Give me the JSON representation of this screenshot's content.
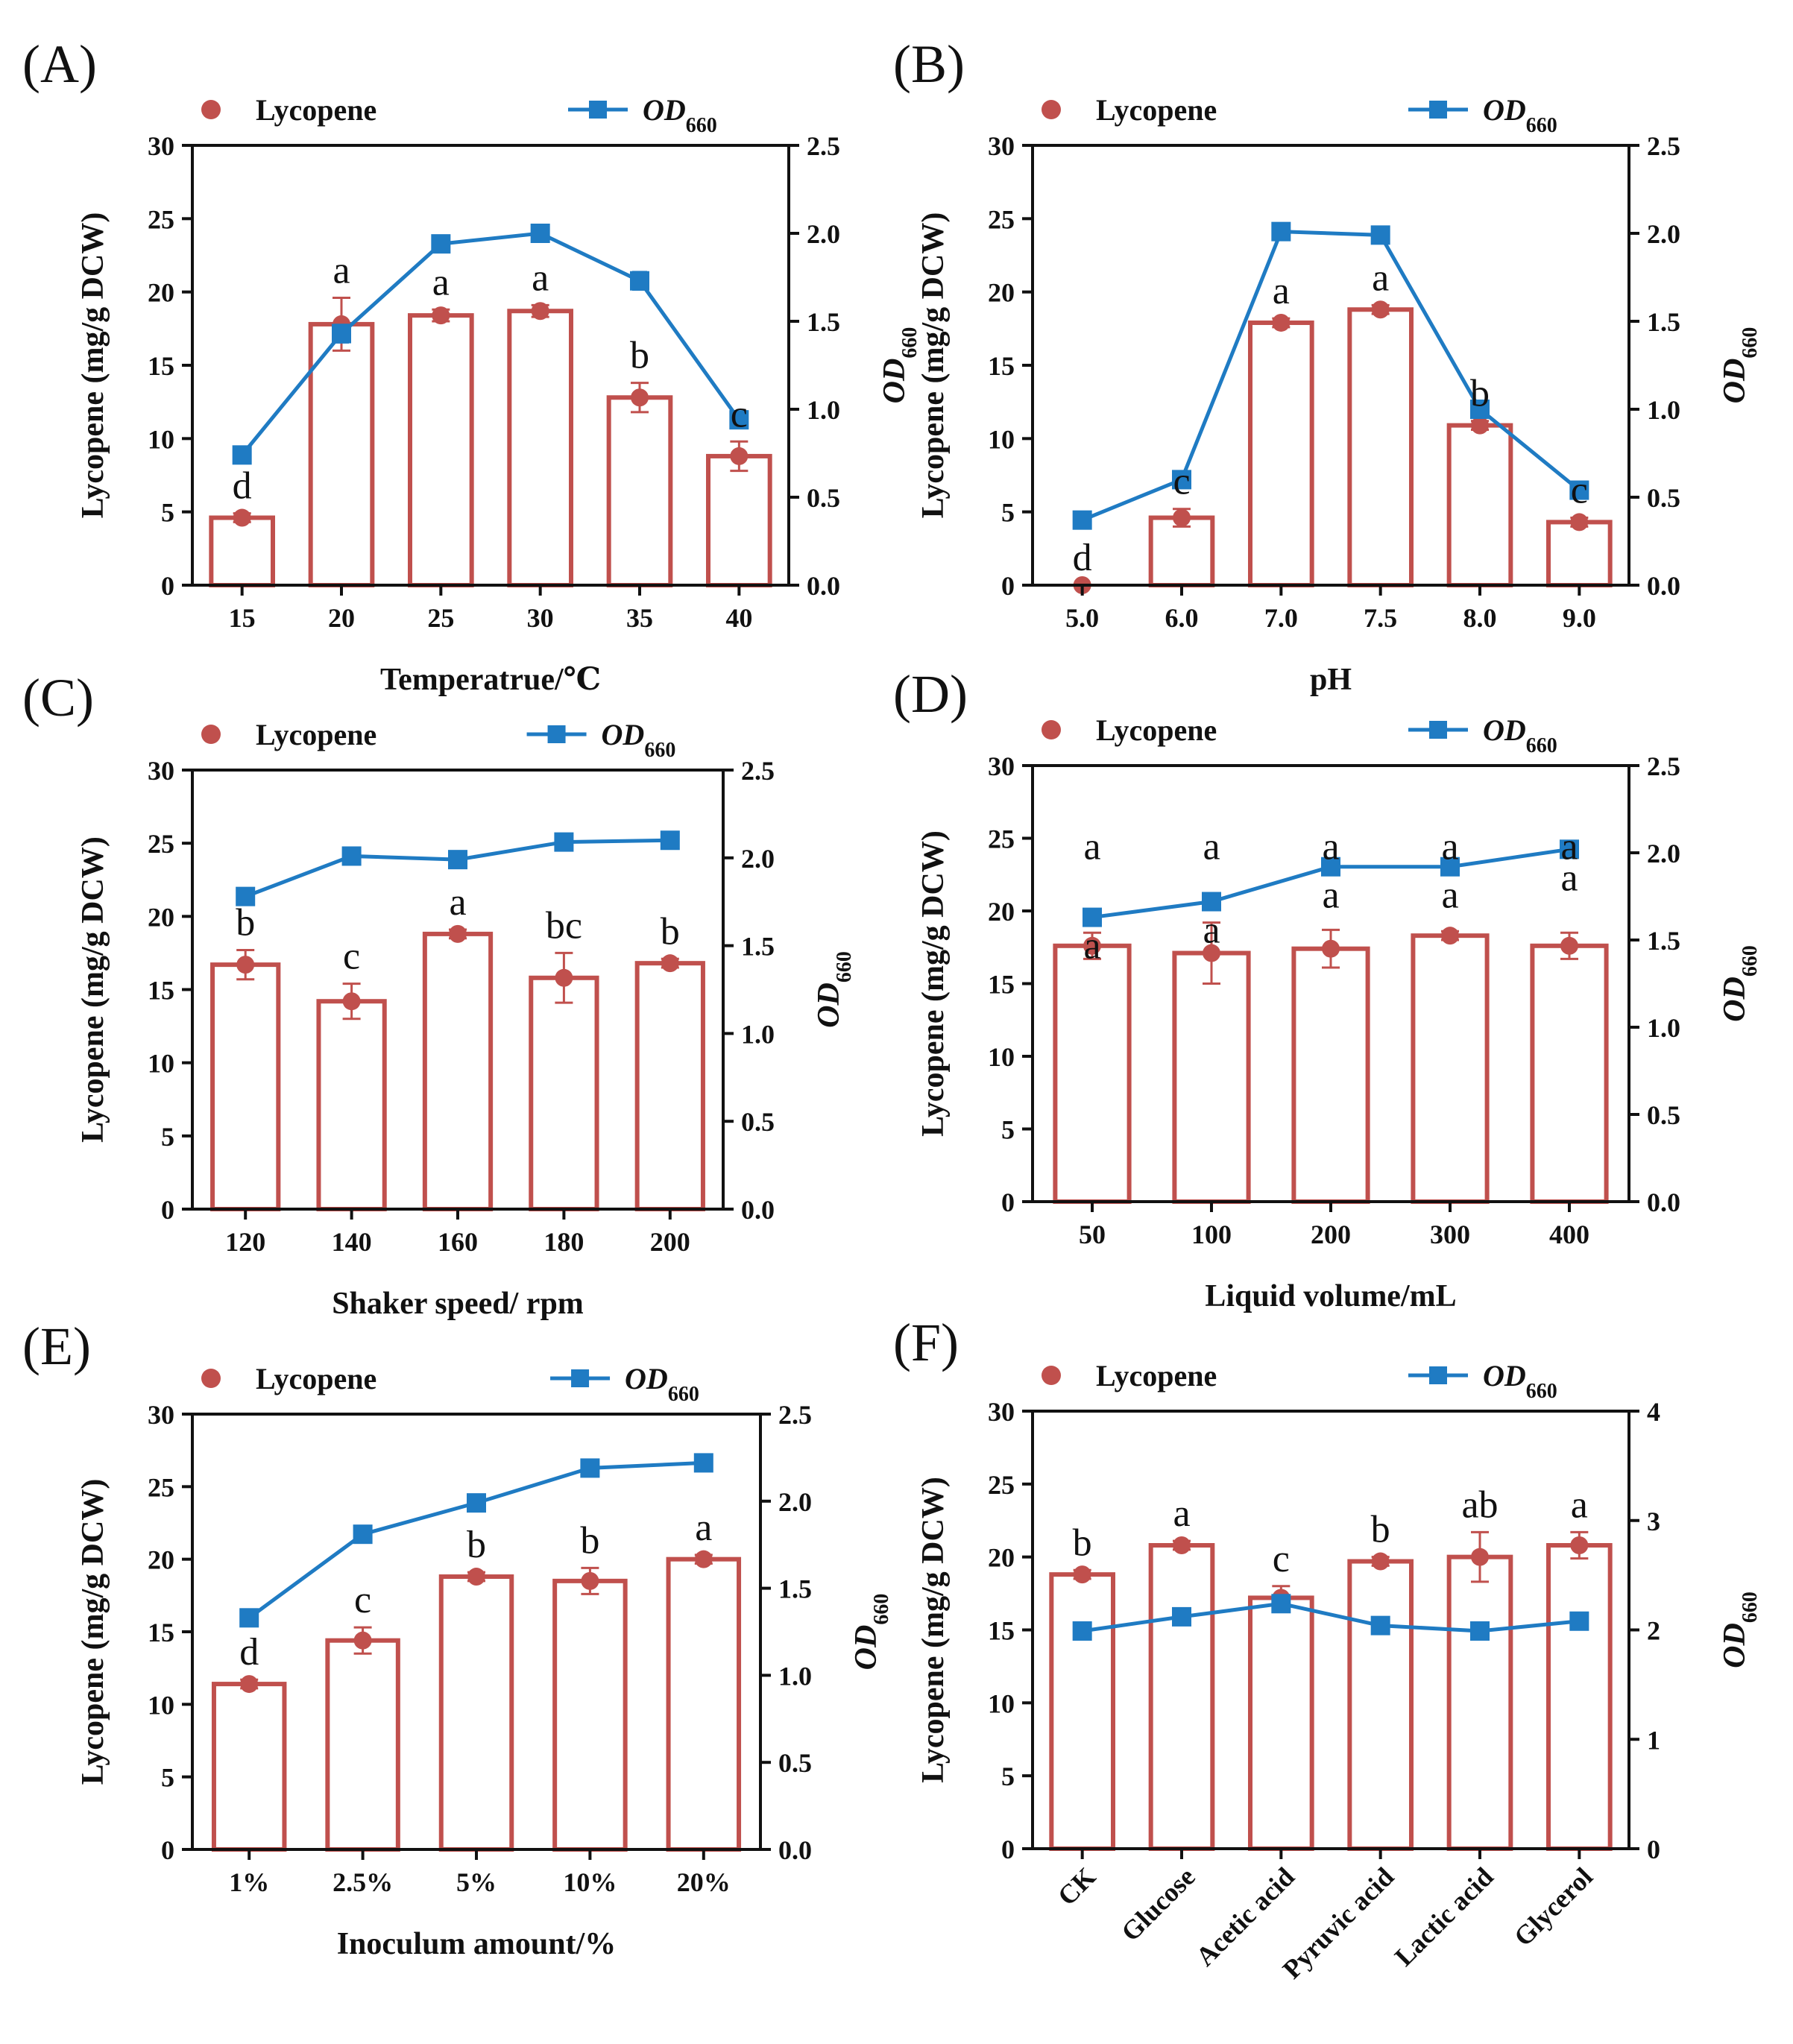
{
  "colors": {
    "bar": "#c0504d",
    "dot": "#c0504d",
    "line": "#1f7bc3",
    "axis": "#111111"
  },
  "legend": {
    "lycopene": "Lycopene",
    "od_main": "OD",
    "od_sub": "660"
  },
  "axis_titles": {
    "left": "Lycopene (mg/g DCW)",
    "right_main": "OD",
    "right_sub": "660"
  },
  "chart_data": [
    {
      "panel": "(A)",
      "type": "bar+line",
      "xlabel": "Temperatrue/℃",
      "categories": [
        "15",
        "20",
        "25",
        "30",
        "35",
        "40"
      ],
      "y_left": {
        "ylim": [
          0,
          30
        ],
        "ticks": [
          0,
          5,
          10,
          15,
          20,
          25,
          30
        ]
      },
      "y_right": {
        "ylim": [
          0,
          2.5
        ],
        "ticks": [
          "0.0",
          "0.5",
          "1.0",
          "1.5",
          "2.0",
          "2.5"
        ]
      },
      "series": [
        {
          "name": "Lycopene",
          "axis": "left",
          "style": "bar+dot",
          "values": [
            4.6,
            17.8,
            18.4,
            18.7,
            12.8,
            8.8
          ],
          "errors": [
            0.3,
            1.8,
            0.4,
            0.4,
            1.0,
            1.0
          ],
          "letters": [
            "d",
            "a",
            "a",
            "a",
            "b",
            "c"
          ]
        },
        {
          "name": "OD660",
          "axis": "right",
          "style": "line+square",
          "values": [
            0.74,
            1.43,
            1.94,
            2.0,
            1.73,
            0.94
          ],
          "errors": [
            0,
            0.05,
            0,
            0,
            0.05,
            0
          ]
        }
      ]
    },
    {
      "panel": "(B)",
      "type": "bar+line",
      "xlabel": "pH",
      "categories": [
        "5.0",
        "6.0",
        "7.0",
        "7.5",
        "8.0",
        "9.0"
      ],
      "y_left": {
        "ylim": [
          0,
          30
        ],
        "ticks": [
          0,
          5,
          10,
          15,
          20,
          25,
          30
        ]
      },
      "y_right": {
        "ylim": [
          0,
          2.5
        ],
        "ticks": [
          "0.0",
          "0.5",
          "1.0",
          "1.5",
          "2.0",
          "2.5"
        ]
      },
      "series": [
        {
          "name": "Lycopene",
          "axis": "left",
          "style": "bar+dot",
          "values": [
            0,
            4.6,
            17.9,
            18.8,
            10.9,
            4.3
          ],
          "errors": [
            0,
            0.6,
            0.3,
            0.3,
            0.3,
            0.3
          ],
          "letters": [
            "d",
            "c",
            "a",
            "a",
            "b",
            "c"
          ]
        },
        {
          "name": "OD660",
          "axis": "right",
          "style": "line+square",
          "values": [
            0.37,
            0.6,
            2.01,
            1.99,
            1.0,
            0.54
          ],
          "errors": [
            0,
            0,
            0,
            0,
            0,
            0
          ]
        }
      ]
    },
    {
      "panel": "(C)",
      "type": "bar+line",
      "xlabel": "Shaker speed/ rpm",
      "categories": [
        "120",
        "140",
        "160",
        "180",
        "200"
      ],
      "y_left": {
        "ylim": [
          0,
          30
        ],
        "ticks": [
          0,
          5,
          10,
          15,
          20,
          25,
          30
        ]
      },
      "y_right": {
        "ylim": [
          0,
          2.5
        ],
        "ticks": [
          "0.0",
          "0.5",
          "1.0",
          "1.5",
          "2.0",
          "2.5"
        ]
      },
      "series": [
        {
          "name": "Lycopene",
          "axis": "left",
          "style": "bar+dot",
          "values": [
            16.7,
            14.2,
            18.8,
            15.8,
            16.8
          ],
          "errors": [
            1.0,
            1.2,
            0.3,
            1.7,
            0.3
          ],
          "letters": [
            "b",
            "c",
            "a",
            "bc",
            "b"
          ]
        },
        {
          "name": "OD660",
          "axis": "right",
          "style": "line+square",
          "values": [
            1.78,
            2.01,
            1.99,
            2.09,
            2.1
          ],
          "errors": [
            0,
            0,
            0,
            0,
            0
          ]
        }
      ]
    },
    {
      "panel": "(D)",
      "type": "bar+line",
      "xlabel": "Liquid volume/mL",
      "categories": [
        "50",
        "100",
        "200",
        "300",
        "400"
      ],
      "y_left": {
        "ylim": [
          0,
          30
        ],
        "ticks": [
          0,
          5,
          10,
          15,
          20,
          25,
          30
        ]
      },
      "y_right": {
        "ylim": [
          0,
          2.5
        ],
        "ticks": [
          "0.0",
          "0.5",
          "1.0",
          "1.5",
          "2.0",
          "2.5"
        ]
      },
      "series": [
        {
          "name": "Lycopene",
          "axis": "left",
          "style": "bar+dot",
          "values": [
            17.6,
            17.1,
            17.4,
            18.3,
            17.6
          ],
          "errors": [
            0.9,
            2.1,
            1.3,
            0.3,
            0.9
          ],
          "letters": [
            "a",
            "a",
            "a",
            "a",
            "a"
          ]
        },
        {
          "name": "OD660",
          "axis": "right",
          "style": "line+square",
          "values": [
            1.63,
            1.72,
            1.92,
            1.92,
            2.02
          ],
          "errors": [
            0,
            0,
            0,
            0,
            0
          ],
          "letters": [
            "a",
            "a",
            "a",
            "a",
            "a"
          ]
        }
      ]
    },
    {
      "panel": "(E)",
      "type": "bar+line",
      "xlabel": "Inoculum amount/%",
      "categories": [
        "1%",
        "2.5%",
        "5%",
        "10%",
        "20%"
      ],
      "y_left": {
        "ylim": [
          0,
          30
        ],
        "ticks": [
          0,
          5,
          10,
          15,
          20,
          25,
          30
        ]
      },
      "y_right": {
        "ylim": [
          0,
          2.5
        ],
        "ticks": [
          "0.0",
          "0.5",
          "1.0",
          "1.5",
          "2.0",
          "2.5"
        ]
      },
      "series": [
        {
          "name": "Lycopene",
          "axis": "left",
          "style": "bar+dot",
          "values": [
            11.4,
            14.4,
            18.8,
            18.5,
            20.0
          ],
          "errors": [
            0.3,
            0.9,
            0.3,
            0.9,
            0.3
          ],
          "letters": [
            "d",
            "c",
            "b",
            "b",
            "a"
          ]
        },
        {
          "name": "OD660",
          "axis": "right",
          "style": "line+square",
          "values": [
            1.33,
            1.81,
            1.99,
            2.19,
            2.22
          ],
          "errors": [
            0,
            0,
            0,
            0,
            0
          ]
        }
      ]
    },
    {
      "panel": "(F)",
      "type": "bar+line",
      "xlabel": "",
      "rotated_ticks": true,
      "categories": [
        "CK",
        "Glucose",
        "Acetic acid",
        "Pyruvic acid",
        "Lactic acid",
        "Glycerol"
      ],
      "y_left": {
        "ylim": [
          0,
          30
        ],
        "ticks": [
          0,
          5,
          10,
          15,
          20,
          25,
          30
        ]
      },
      "y_right": {
        "ylim": [
          0,
          4
        ],
        "ticks": [
          "0",
          "1",
          "2",
          "3",
          "4"
        ]
      },
      "series": [
        {
          "name": "Lycopene",
          "axis": "left",
          "style": "bar+dot",
          "values": [
            18.8,
            20.8,
            17.2,
            19.7,
            20.0,
            20.8
          ],
          "errors": [
            0.3,
            0.3,
            0.8,
            0.3,
            1.7,
            0.9
          ],
          "letters": [
            "b",
            "a",
            "c",
            "b",
            "ab",
            "a"
          ]
        },
        {
          "name": "OD660",
          "axis": "right",
          "style": "line+square",
          "values": [
            1.99,
            2.12,
            2.24,
            2.04,
            1.99,
            2.08
          ],
          "errors": [
            0,
            0,
            0,
            0,
            0,
            0
          ]
        }
      ]
    }
  ]
}
